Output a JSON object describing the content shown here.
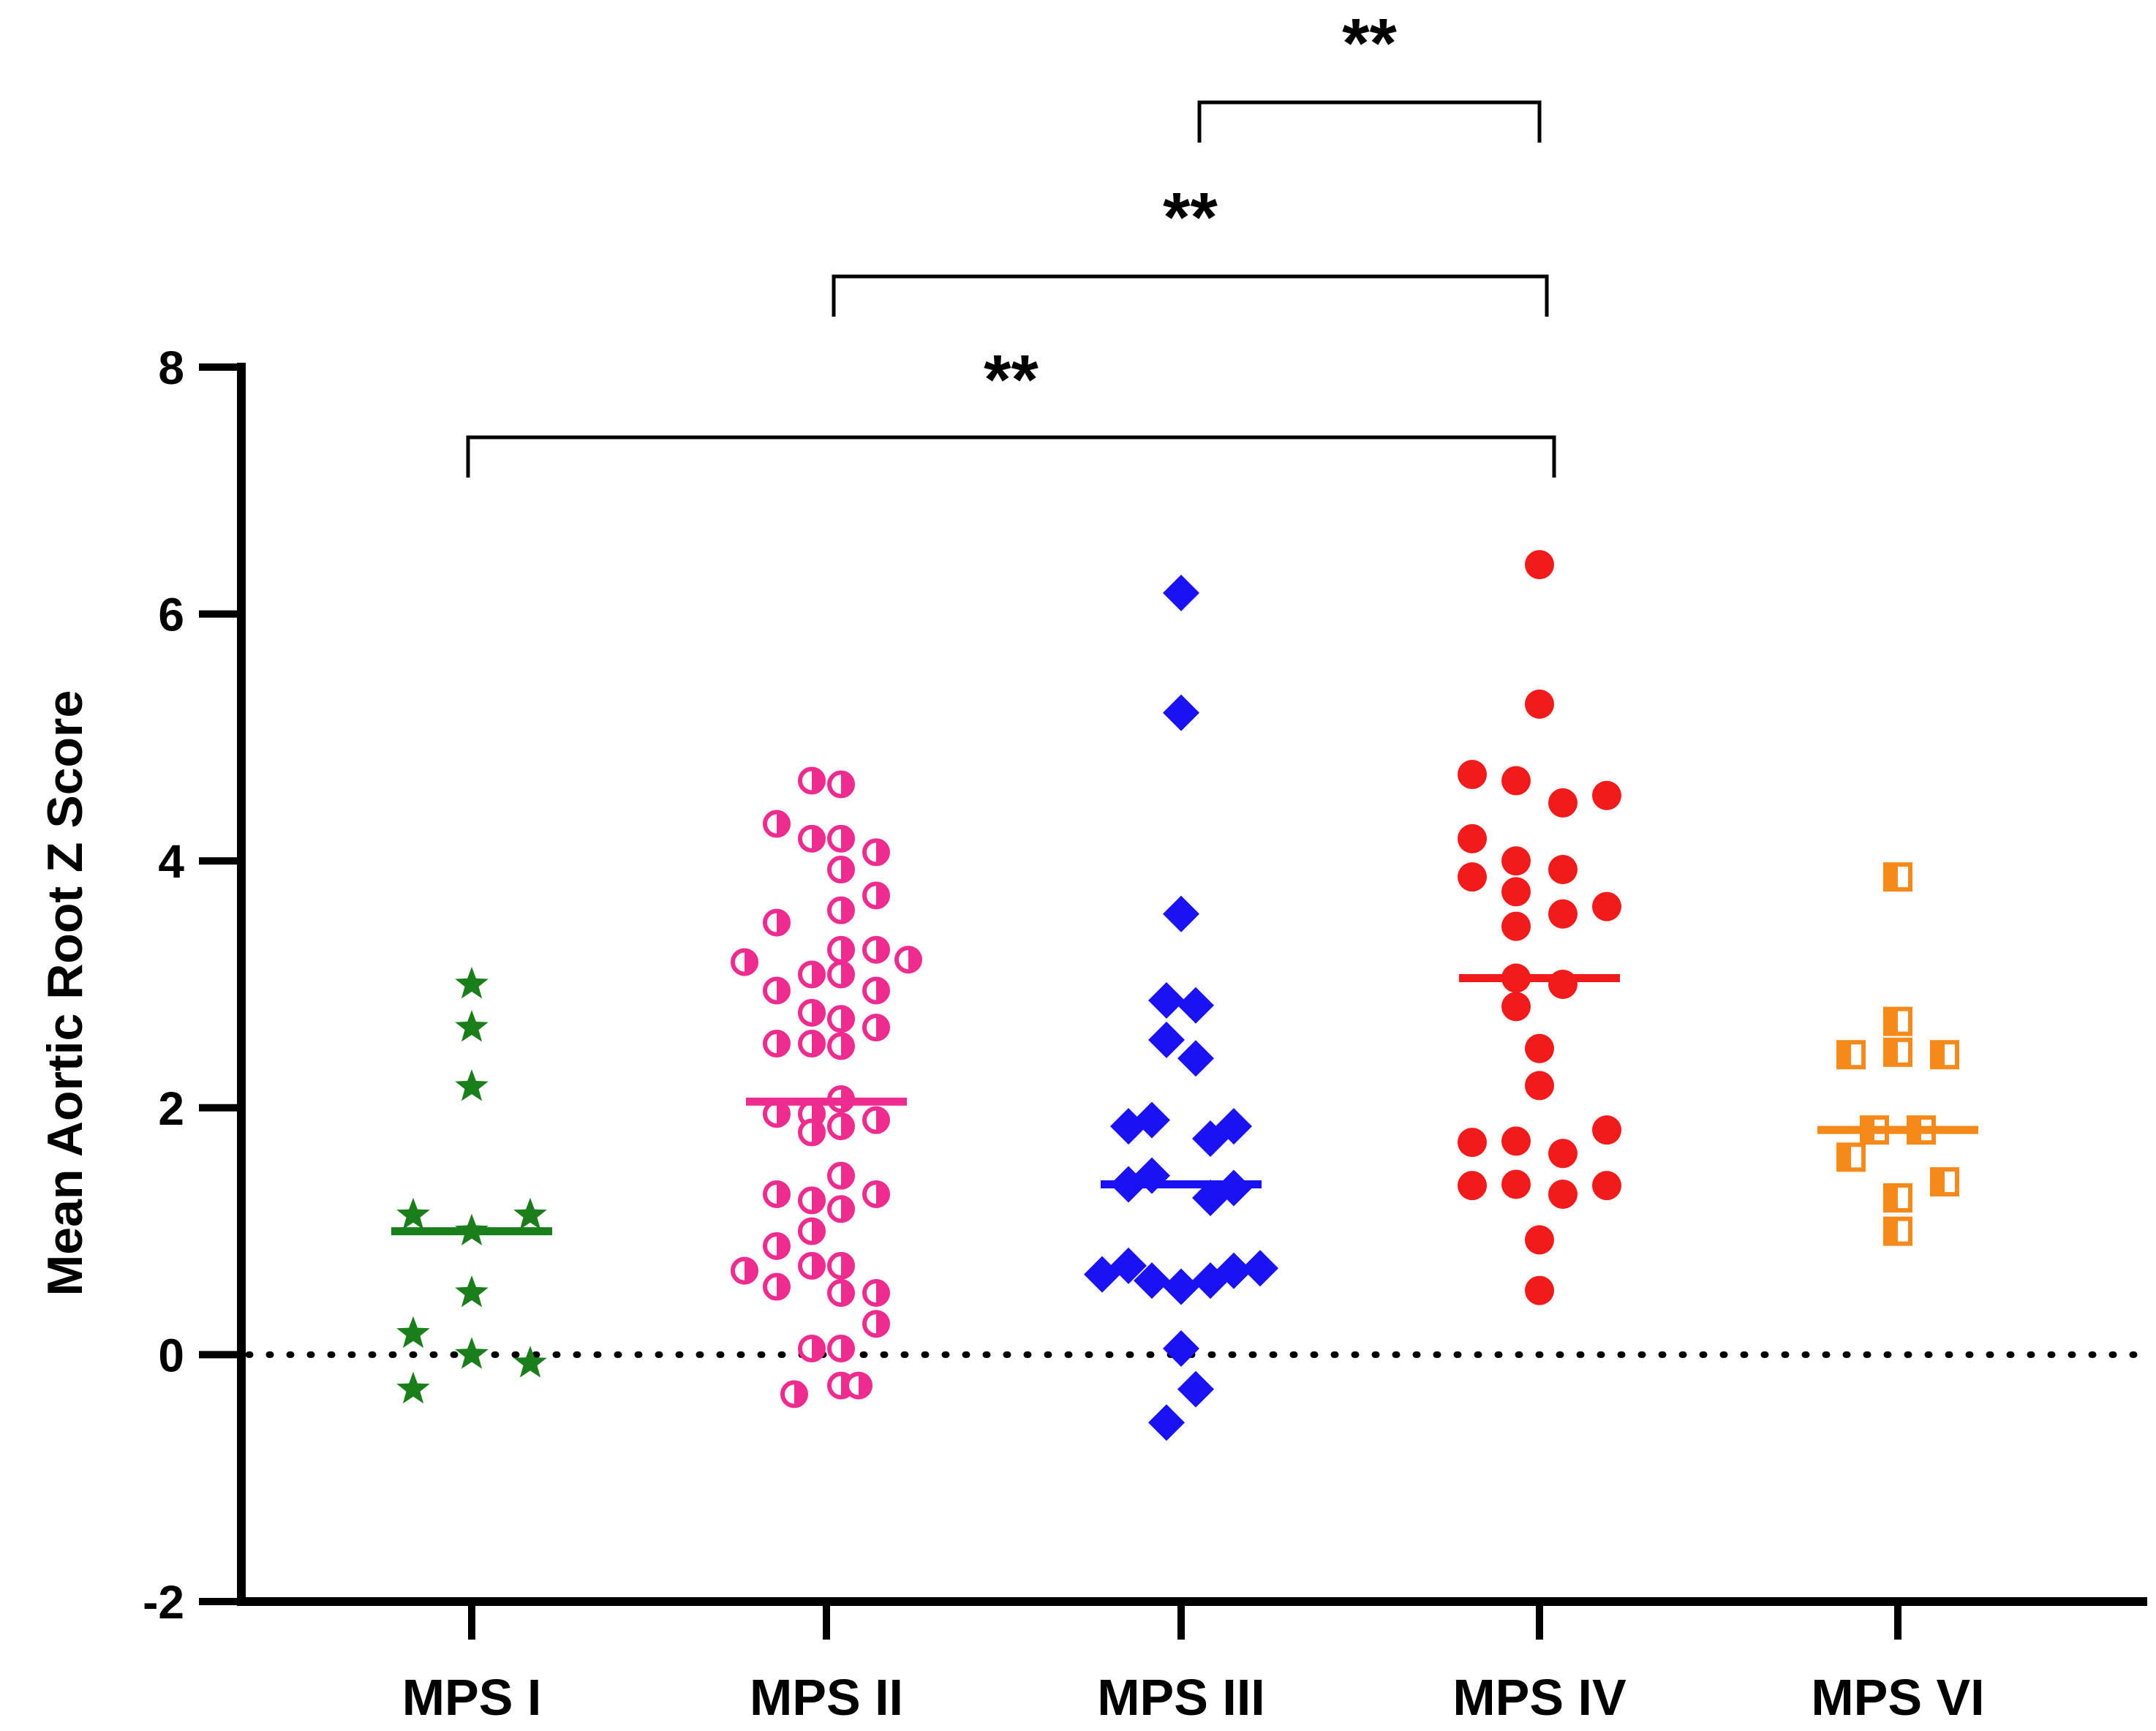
{
  "chart_data": {
    "type": "scatter",
    "ylabel": "Mean Aortic Root Z Score",
    "ylim": [
      -2,
      8
    ],
    "yticks": [
      "-2",
      "0",
      "2",
      "4",
      "6",
      "8"
    ],
    "reference_line": 0,
    "categories": [
      "MPS I",
      "MPS II",
      "MPS III",
      "MPS IV",
      "MPS VI"
    ],
    "series": [
      {
        "category": "MPS I",
        "marker": "star",
        "color": "#1a7f1a",
        "mean": 1.0,
        "points": [
          [
            0,
            3.0
          ],
          [
            0,
            2.65
          ],
          [
            0,
            2.17
          ],
          [
            -0.2,
            1.13
          ],
          [
            0.2,
            1.13
          ],
          [
            0,
            1.0
          ],
          [
            0,
            0.5
          ],
          [
            -0.2,
            0.17
          ],
          [
            0,
            0.0
          ],
          [
            0.2,
            -0.07
          ],
          [
            -0.2,
            -0.28
          ]
        ]
      },
      {
        "category": "MPS II",
        "marker": "half-circle",
        "color": "#ee2b8f",
        "mean": 2.05,
        "points": [
          [
            -0.05,
            4.65
          ],
          [
            0.05,
            4.62
          ],
          [
            -0.17,
            4.3
          ],
          [
            -0.05,
            4.18
          ],
          [
            0.05,
            4.18
          ],
          [
            0.17,
            4.07
          ],
          [
            0.05,
            3.93
          ],
          [
            0.17,
            3.72
          ],
          [
            0.05,
            3.6
          ],
          [
            -0.17,
            3.5
          ],
          [
            0.05,
            3.28
          ],
          [
            0.17,
            3.28
          ],
          [
            0.28,
            3.2
          ],
          [
            -0.28,
            3.18
          ],
          [
            -0.05,
            3.08
          ],
          [
            0.05,
            3.08
          ],
          [
            -0.17,
            2.95
          ],
          [
            0.17,
            2.95
          ],
          [
            -0.05,
            2.77
          ],
          [
            0.05,
            2.72
          ],
          [
            0.17,
            2.65
          ],
          [
            -0.17,
            2.52
          ],
          [
            -0.05,
            2.52
          ],
          [
            0.05,
            2.5
          ],
          [
            0.05,
            2.07
          ],
          [
            -0.17,
            1.95
          ],
          [
            -0.05,
            1.95
          ],
          [
            0.17,
            1.9
          ],
          [
            0.05,
            1.85
          ],
          [
            -0.05,
            1.8
          ],
          [
            0.05,
            1.45
          ],
          [
            -0.17,
            1.3
          ],
          [
            0.17,
            1.3
          ],
          [
            -0.05,
            1.25
          ],
          [
            0.05,
            1.18
          ],
          [
            -0.05,
            1.0
          ],
          [
            -0.17,
            0.88
          ],
          [
            -0.05,
            0.72
          ],
          [
            0.05,
            0.72
          ],
          [
            -0.28,
            0.68
          ],
          [
            -0.17,
            0.55
          ],
          [
            0.05,
            0.5
          ],
          [
            0.17,
            0.5
          ],
          [
            0.17,
            0.25
          ],
          [
            -0.05,
            0.05
          ],
          [
            0.05,
            0.05
          ],
          [
            0.05,
            -0.25
          ],
          [
            0.11,
            -0.25
          ],
          [
            -0.11,
            -0.32
          ]
        ]
      },
      {
        "category": "MPS III",
        "marker": "diamond",
        "color": "#1a12f2",
        "mean": 1.38,
        "points": [
          [
            0,
            6.17
          ],
          [
            0,
            5.2
          ],
          [
            0,
            3.57
          ],
          [
            -0.05,
            2.87
          ],
          [
            0.05,
            2.83
          ],
          [
            -0.05,
            2.55
          ],
          [
            0.05,
            2.4
          ],
          [
            -0.18,
            1.85
          ],
          [
            -0.1,
            1.9
          ],
          [
            0.1,
            1.75
          ],
          [
            0.18,
            1.85
          ],
          [
            -0.1,
            1.45
          ],
          [
            0.1,
            1.27
          ],
          [
            0.18,
            1.35
          ],
          [
            -0.18,
            1.38
          ],
          [
            -0.27,
            0.65
          ],
          [
            -0.18,
            0.72
          ],
          [
            -0.1,
            0.6
          ],
          [
            0,
            0.55
          ],
          [
            0.1,
            0.6
          ],
          [
            0.18,
            0.68
          ],
          [
            0.27,
            0.7
          ],
          [
            0,
            0.05
          ],
          [
            0.05,
            -0.28
          ],
          [
            -0.05,
            -0.55
          ]
        ]
      },
      {
        "category": "MPS IV",
        "marker": "circle",
        "color": "#f21a1a",
        "mean": 3.05,
        "points": [
          [
            0,
            6.4
          ],
          [
            0,
            5.27
          ],
          [
            -0.23,
            4.7
          ],
          [
            -0.08,
            4.65
          ],
          [
            0.08,
            4.47
          ],
          [
            0.23,
            4.53
          ],
          [
            -0.23,
            4.18
          ],
          [
            -0.08,
            4.0
          ],
          [
            0.08,
            3.93
          ],
          [
            -0.23,
            3.87
          ],
          [
            -0.08,
            3.75
          ],
          [
            0.23,
            3.63
          ],
          [
            0.08,
            3.57
          ],
          [
            -0.08,
            3.47
          ],
          [
            -0.08,
            3.05
          ],
          [
            0.08,
            3.0
          ],
          [
            -0.08,
            2.82
          ],
          [
            0,
            2.48
          ],
          [
            0,
            2.18
          ],
          [
            0.23,
            1.82
          ],
          [
            -0.08,
            1.73
          ],
          [
            -0.23,
            1.72
          ],
          [
            0.08,
            1.63
          ],
          [
            -0.08,
            1.38
          ],
          [
            -0.23,
            1.37
          ],
          [
            0.23,
            1.37
          ],
          [
            0.08,
            1.3
          ],
          [
            0,
            0.93
          ],
          [
            0,
            0.52
          ]
        ]
      },
      {
        "category": "MPS VI",
        "marker": "half-square",
        "color": "#f58a1a",
        "mean": 1.82,
        "points": [
          [
            0,
            3.87
          ],
          [
            0,
            2.7
          ],
          [
            0,
            2.45
          ],
          [
            -0.16,
            2.43
          ],
          [
            0.16,
            2.43
          ],
          [
            -0.08,
            1.82
          ],
          [
            0.08,
            1.82
          ],
          [
            -0.16,
            1.6
          ],
          [
            0.16,
            1.4
          ],
          [
            0,
            1.27
          ],
          [
            0,
            1.0
          ]
        ]
      }
    ],
    "significance": [
      {
        "from": "MPS III",
        "to": "MPS IV",
        "label": "**"
      },
      {
        "from": "MPS II",
        "to": "MPS IV",
        "label": "**"
      },
      {
        "from": "MPS I",
        "to": "MPS IV",
        "label": "**"
      }
    ]
  }
}
